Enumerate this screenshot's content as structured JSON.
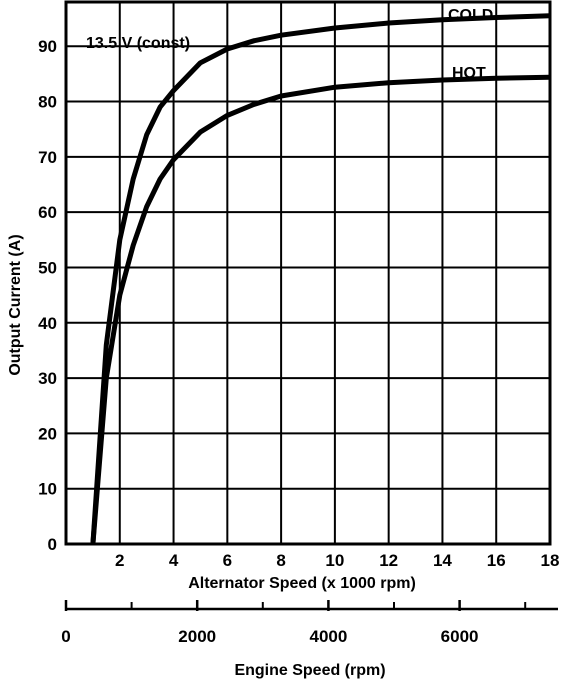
{
  "chart_data": {
    "type": "line",
    "annotation": "13.5 V (const)",
    "xlabel": "Alternator Speed (x 1000 rpm)",
    "ylabel": "Output Current (A)",
    "secondary_xlabel": "Engine Speed (rpm)",
    "xlim": [
      0,
      18
    ],
    "ylim": [
      0,
      98
    ],
    "x_ticks": [
      2,
      4,
      6,
      8,
      10,
      12,
      14,
      16,
      18
    ],
    "y_ticks": [
      0,
      10,
      20,
      30,
      40,
      50,
      60,
      70,
      80,
      90
    ],
    "secondary_xlim": [
      0,
      7500
    ],
    "secondary_major_ticks": [
      0,
      2000,
      4000,
      6000
    ],
    "secondary_minor_ticks": [
      1000,
      3000,
      5000,
      7000
    ],
    "grid": true,
    "series": [
      {
        "name": "COLD",
        "x": [
          1.0,
          1.5,
          2.0,
          2.5,
          3.0,
          3.5,
          4.0,
          5.0,
          6.0,
          7.0,
          8.0,
          10.0,
          12.0,
          14.0,
          16.0,
          18.0
        ],
        "y": [
          0,
          36,
          55,
          66,
          74,
          79,
          82,
          87,
          89.5,
          91,
          92,
          93.3,
          94.2,
          94.8,
          95.2,
          95.5
        ]
      },
      {
        "name": "HOT",
        "x": [
          1.0,
          1.5,
          2.0,
          2.5,
          3.0,
          3.5,
          4.0,
          5.0,
          6.0,
          7.0,
          8.0,
          10.0,
          12.0,
          14.0,
          16.0,
          18.0
        ],
        "y": [
          0,
          30,
          45,
          54,
          61,
          66,
          69.5,
          74.5,
          77.5,
          79.5,
          81,
          82.6,
          83.4,
          83.9,
          84.2,
          84.4
        ]
      }
    ]
  }
}
